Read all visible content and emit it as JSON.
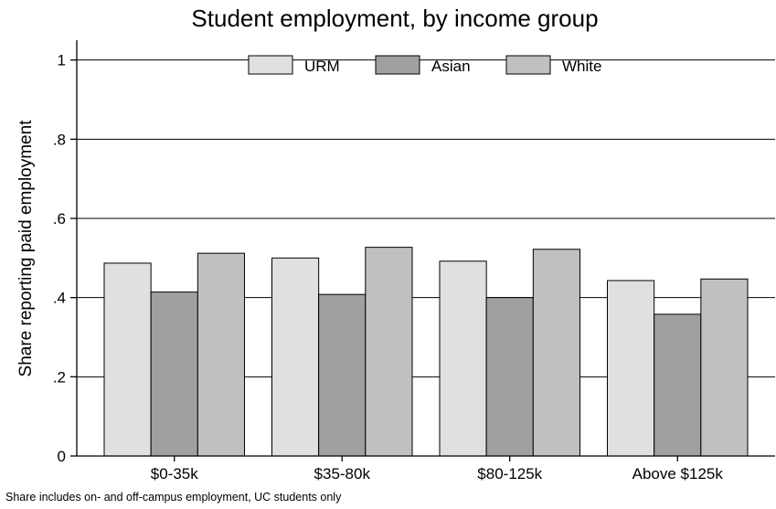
{
  "chart_data": {
    "type": "bar",
    "title": "Student employment, by income group",
    "ylabel": "Share reporting paid employment",
    "xlabel": "",
    "ylim": [
      0,
      1.05
    ],
    "yticks": [
      0,
      0.2,
      0.4,
      0.6,
      0.8,
      1
    ],
    "ytick_labels": [
      "0",
      ".2",
      ".4",
      ".6",
      ".8",
      "1"
    ],
    "grid": true,
    "legend_position": "top",
    "categories": [
      "$0-35k",
      "$35-80k",
      "$80-125k",
      "Above $125k"
    ],
    "series": [
      {
        "name": "URM",
        "color": "#e0e0e0",
        "values": [
          0.487,
          0.5,
          0.492,
          0.443
        ]
      },
      {
        "name": "Asian",
        "color": "#a0a0a0",
        "values": [
          0.414,
          0.408,
          0.4,
          0.358
        ]
      },
      {
        "name": "White",
        "color": "#c0c0c0",
        "values": [
          0.512,
          0.527,
          0.522,
          0.447
        ]
      }
    ],
    "note": "Share includes on- and off-campus employment, UC students only"
  }
}
